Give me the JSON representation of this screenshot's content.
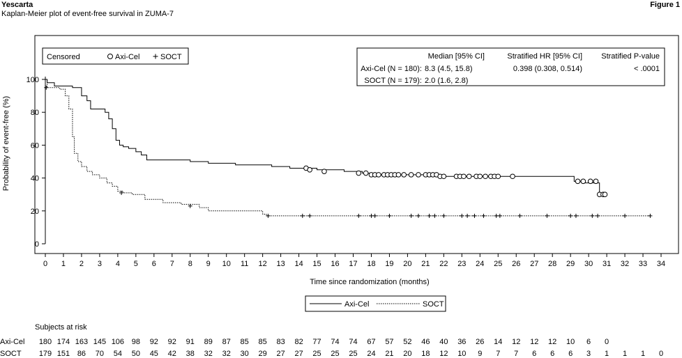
{
  "header": {
    "brand": "Yescarta",
    "subtitle": "Kaplan-Meier plot of event-free survival in ZUMA-7",
    "figure_label": "Figure 1"
  },
  "colors": {
    "line": "#000000",
    "background": "#ffffff"
  },
  "censor_legend": {
    "title": "Censored",
    "axicel": "Axi-Cel",
    "socT": "SOCT"
  },
  "stats_table": {
    "headers": [
      "Median [95% CI]",
      "Stratified HR [95% CI]",
      "Stratified P-value"
    ],
    "rows": [
      {
        "arm": "Axi-Cel (N = 180):",
        "median": "8.3 (4.5, 15.8)",
        "hr": "0.398 (0.308, 0.514)",
        "p": "< .0001"
      },
      {
        "arm": "SOCT (N = 179):",
        "median": "2.0 (1.6, 2.8)",
        "hr": "",
        "p": ""
      }
    ]
  },
  "line_legend": {
    "axicel": "Axi-Cel",
    "socT": "SOCT"
  },
  "risk_table": {
    "title": "Subjects at risk",
    "rows": [
      {
        "label": "Axi-Cel",
        "values": [
          "180",
          "174",
          "163",
          "145",
          "106",
          "98",
          "92",
          "92",
          "91",
          "89",
          "87",
          "85",
          "85",
          "83",
          "82",
          "77",
          "74",
          "74",
          "67",
          "57",
          "52",
          "46",
          "40",
          "36",
          "26",
          "14",
          "12",
          "12",
          "12",
          "10",
          "6",
          "0"
        ]
      },
      {
        "label": "SOCT",
        "values": [
          "179",
          "151",
          "86",
          "70",
          "54",
          "50",
          "45",
          "42",
          "38",
          "32",
          "32",
          "30",
          "29",
          "27",
          "27",
          "25",
          "25",
          "25",
          "24",
          "21",
          "20",
          "18",
          "12",
          "10",
          "9",
          "7",
          "7",
          "6",
          "6",
          "6",
          "3",
          "1",
          "1",
          "1",
          "0"
        ]
      }
    ]
  },
  "chart_data": {
    "type": "line",
    "title": "",
    "xlabel": "Time since randomization (months)",
    "ylabel": "Probability of event-free (%)",
    "xlim": [
      0,
      34
    ],
    "ylim": [
      0,
      100
    ],
    "xticks": [
      "0",
      "1",
      "2",
      "3",
      "4",
      "5",
      "6",
      "7",
      "8",
      "9",
      "10",
      "11",
      "12",
      "13",
      "14",
      "15",
      "16",
      "17",
      "18",
      "19",
      "20",
      "21",
      "22",
      "23",
      "24",
      "25",
      "26",
      "27",
      "28",
      "29",
      "30",
      "31",
      "32",
      "33",
      "34"
    ],
    "yticks": [
      "0",
      "20",
      "40",
      "60",
      "80",
      "100"
    ],
    "grid": false,
    "legend_placement": "bottom-center",
    "series": [
      {
        "name": "Axi-Cel",
        "style": "solid",
        "censor_marker": "circle",
        "x": [
          0,
          0.1,
          0.5,
          1.0,
          1.5,
          2.0,
          2.3,
          2.5,
          3.0,
          3.3,
          3.5,
          3.7,
          3.9,
          4.1,
          4.3,
          4.6,
          5.0,
          5.3,
          5.6,
          6.0,
          8.0,
          9.0,
          10.0,
          10.5,
          12.5,
          13.5,
          15.0,
          16.5,
          17.5,
          18.0,
          21.0,
          21.7,
          28.5,
          29.2,
          29.8,
          30.4,
          30.6,
          31.0
        ],
        "y": [
          100,
          98,
          96,
          96,
          95,
          90,
          87,
          82,
          82,
          80,
          76,
          70,
          63,
          60,
          59,
          58,
          56,
          54,
          51,
          51,
          50,
          49,
          49,
          48,
          47,
          46,
          45,
          44,
          43,
          42,
          42,
          41,
          41,
          38,
          37,
          37,
          30,
          30
        ],
        "censored_x": [
          14.4,
          14.6,
          15.4,
          17.3,
          17.7,
          18.0,
          18.2,
          18.4,
          18.7,
          18.9,
          19.1,
          19.3,
          19.5,
          19.8,
          20.2,
          20.6,
          21.0,
          21.2,
          21.4,
          21.6,
          21.8,
          22.0,
          22.7,
          22.9,
          23.1,
          23.4,
          23.8,
          24.0,
          24.3,
          24.6,
          24.8,
          25.0,
          25.8,
          29.4,
          29.7,
          30.1,
          30.4,
          30.6,
          30.8,
          30.9
        ],
        "censored_y": [
          46,
          45,
          44,
          43,
          43,
          42,
          42,
          42,
          42,
          42,
          42,
          42,
          42,
          42,
          42,
          42,
          42,
          42,
          42,
          42,
          41,
          41,
          41,
          41,
          41,
          41,
          41,
          41,
          41,
          41,
          41,
          41,
          41,
          38,
          38,
          38,
          38,
          30,
          30,
          30
        ]
      },
      {
        "name": "SOCT",
        "style": "dotted",
        "censor_marker": "plus",
        "x": [
          0,
          0.1,
          0.8,
          1.1,
          1.3,
          1.5,
          1.6,
          1.8,
          2.0,
          2.3,
          2.6,
          3.0,
          3.4,
          3.7,
          4.0,
          4.3,
          4.8,
          5.5,
          6.5,
          7.5,
          8.5,
          9.0,
          10.5,
          12.0,
          12.2,
          33.4
        ],
        "y": [
          100,
          95,
          94,
          90,
          82,
          65,
          55,
          50,
          47,
          44,
          42,
          40,
          37,
          35,
          32,
          31,
          30,
          27,
          25,
          24,
          22,
          20,
          20,
          18,
          17,
          17
        ],
        "censored_x": [
          0.05,
          4.2,
          8.0,
          12.3,
          14.2,
          14.6,
          17.3,
          18.0,
          18.2,
          19.0,
          20.2,
          20.6,
          21.2,
          21.5,
          22.0,
          23.0,
          23.3,
          23.7,
          24.2,
          24.9,
          25.1,
          26.2,
          27.7,
          29.0,
          29.3,
          30.2,
          30.5,
          32.0,
          33.4
        ],
        "censored_y": [
          95,
          31,
          23,
          17,
          17,
          17,
          17,
          17,
          17,
          17,
          17,
          17,
          17,
          17,
          17,
          17,
          17,
          17,
          17,
          17,
          17,
          17,
          17,
          17,
          17,
          17,
          17,
          17,
          17
        ]
      }
    ]
  }
}
